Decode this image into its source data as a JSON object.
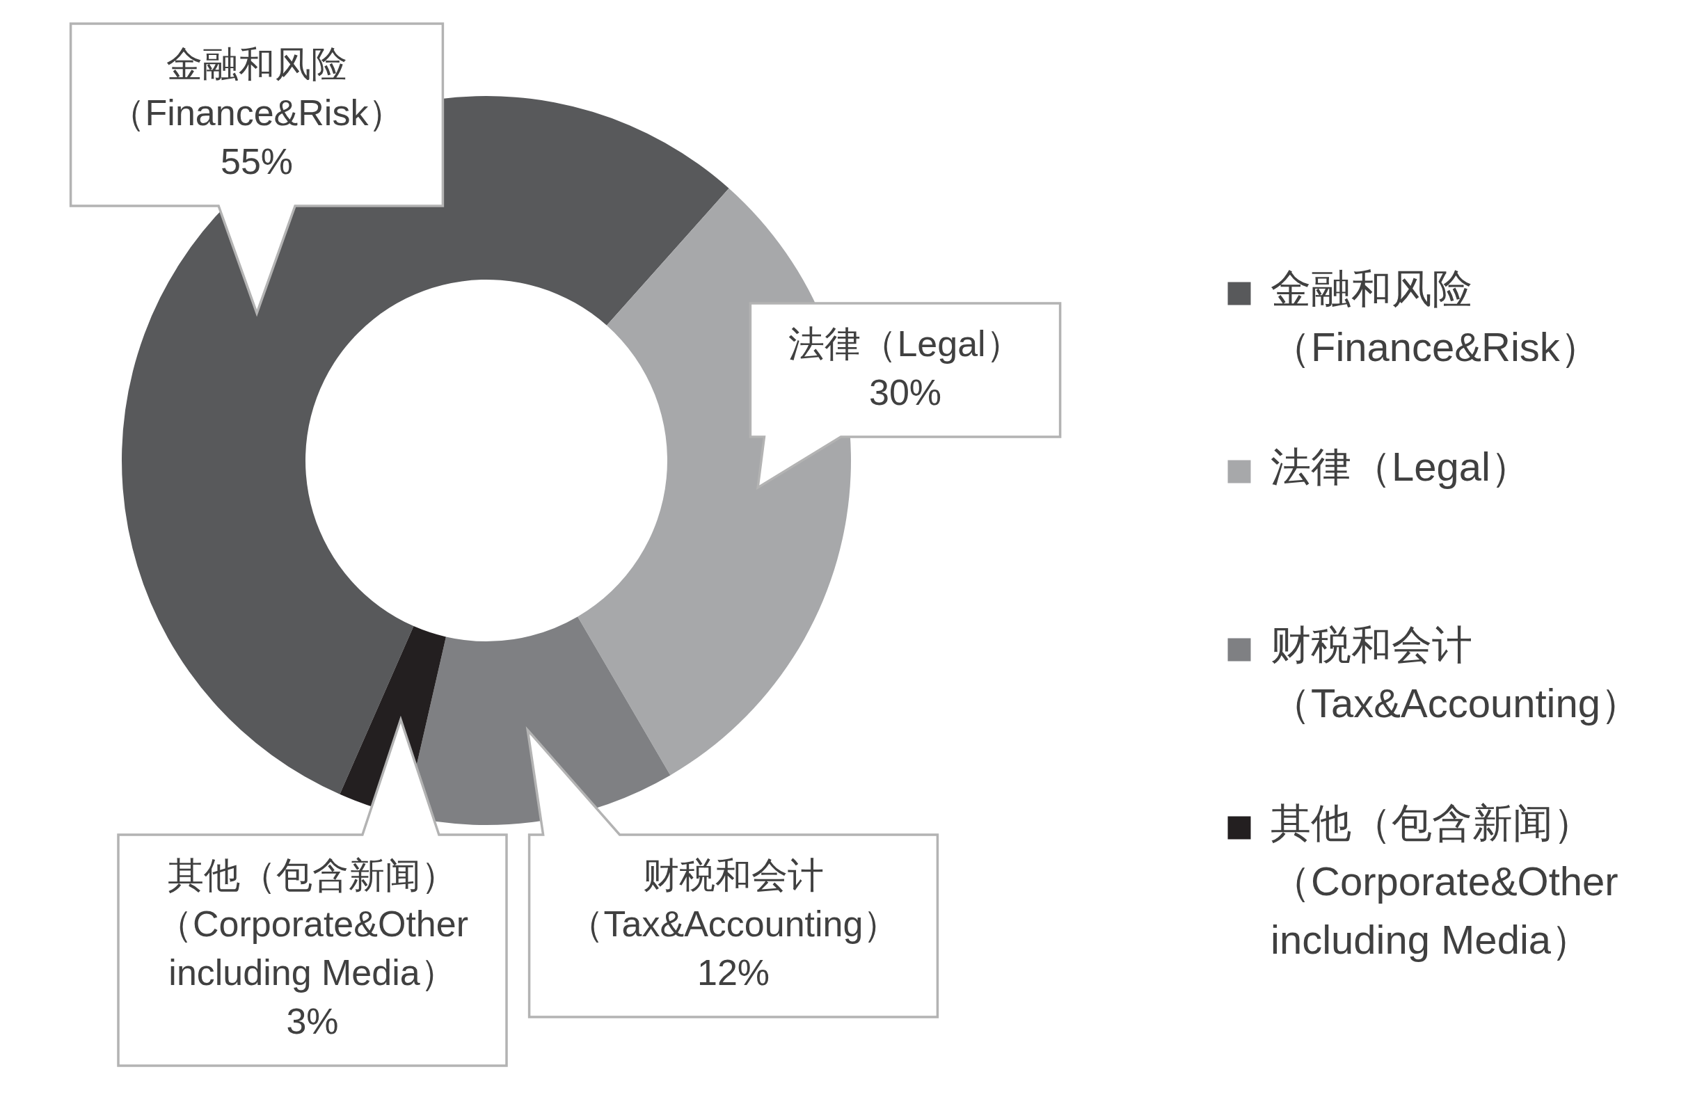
{
  "chart_data": {
    "type": "donut",
    "categories": [
      "金融和风险（Finance&Risk）",
      "法律（Legal）",
      "财税和会计（Tax&Accounting）",
      "其他（包含新闻）（Corporate&Other including Media）"
    ],
    "values": [
      55,
      30,
      12,
      3
    ],
    "colors": [
      "#58595b",
      "#a7a8aa",
      "#7f8083",
      "#231f20"
    ],
    "value_labels": [
      "55%",
      "30%",
      "12%",
      "3%"
    ],
    "legend": "right"
  }
}
